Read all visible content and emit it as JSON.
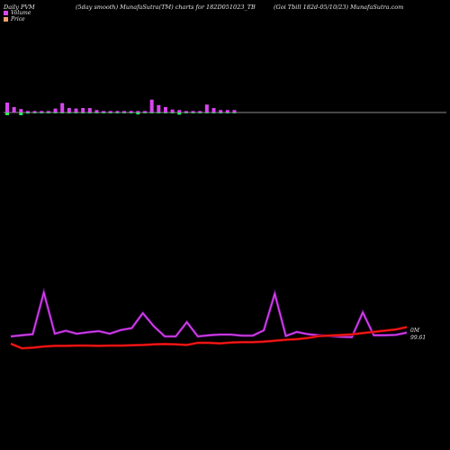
{
  "header": {
    "left": "Daily PVM",
    "center": "(5day smooth) MunafaSutra(TM) charts for 182D051023_TB",
    "right": "(Goi  Tbill 182d-05/10/23) MunafaSutra.com"
  },
  "legend": [
    {
      "label": "Volume",
      "color": "#d946ef"
    },
    {
      "label": "Price",
      "color": "#f0a070"
    }
  ],
  "chart_data": {
    "type": "line",
    "last_volume_label": "0M",
    "last_price_label": "99.61",
    "colors": {
      "volume_line": "#9b1fb5",
      "volume_up": "#d946ef",
      "volume_down": "#2ee85a",
      "price": "#ff1a1a",
      "baseline": "#bbbbbb"
    },
    "volume_bars": {
      "up": [
        1.0,
        0.55,
        0.35,
        0.15,
        0.15,
        0.15,
        0.15,
        0.4,
        0.95,
        0.45,
        0.4,
        0.45,
        0.45,
        0.25,
        0.15,
        0.15,
        0.15,
        0.15,
        0.15,
        0.15,
        0.15,
        1.3,
        0.75,
        0.55,
        0.3,
        0.25,
        0.15,
        0.15,
        0.15,
        0.8,
        0.45,
        0.25,
        0.25,
        0.25
      ],
      "down": [
        1.0,
        0.0,
        1.0,
        0.4,
        0.3,
        0.3,
        0.3,
        0.3,
        0.3,
        0.3,
        0.3,
        0.3,
        0.3,
        0.3,
        0.3,
        0.3,
        0.3,
        0.3,
        0.3,
        0.7,
        0.3,
        0.3,
        0.3,
        0.3,
        0.3,
        0.8,
        0.3,
        0.3,
        0.3,
        0.3,
        0.3,
        0.3,
        0.3,
        0.3
      ]
    },
    "volume_line": [
      0.3,
      0.6,
      0.9,
      12.0,
      1.0,
      1.8,
      1.0,
      1.4,
      1.7,
      1.0,
      2.0,
      2.5,
      6.5,
      3.0,
      0.3,
      0.3,
      4.1,
      0.3,
      0.6,
      0.8,
      0.8,
      0.5,
      0.5,
      1.9,
      11.7,
      0.4,
      1.5,
      0.9,
      0.6,
      0.4,
      0.2,
      0.1,
      6.7,
      0.6,
      0.6,
      0.7,
      1.3
    ],
    "price_line": [
      98.95,
      98.8,
      98.82,
      98.86,
      98.88,
      98.88,
      98.89,
      98.89,
      98.88,
      98.89,
      98.89,
      98.9,
      98.91,
      98.93,
      98.94,
      98.93,
      98.91,
      98.98,
      98.98,
      98.96,
      98.99,
      99.0,
      99.0,
      99.02,
      99.05,
      99.08,
      99.1,
      99.14,
      99.2,
      99.22,
      99.24,
      99.26,
      99.3,
      99.34,
      99.38,
      99.42,
      99.5
    ]
  }
}
